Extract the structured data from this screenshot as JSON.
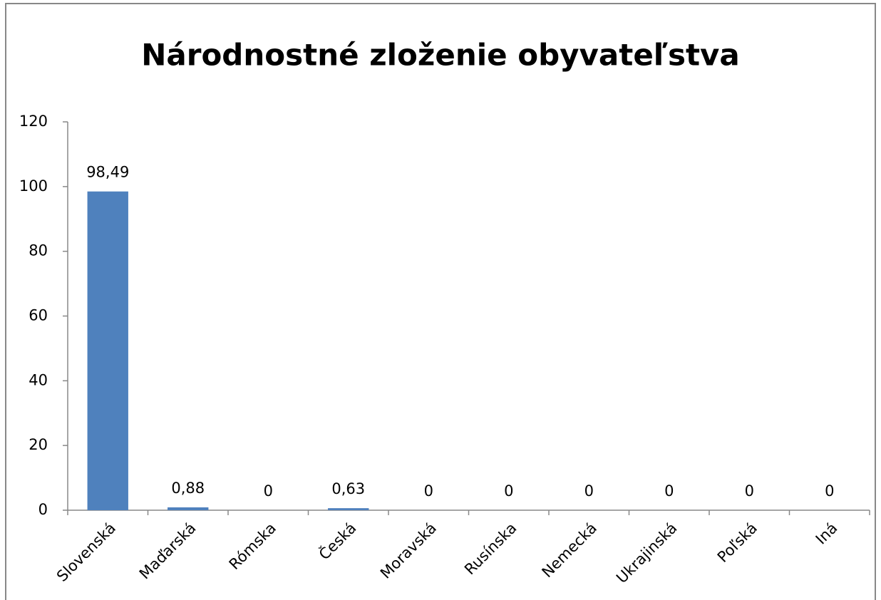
{
  "chart_data": {
    "type": "bar",
    "title": "Národnostné zloženie obyvateľstva",
    "categories": [
      "Slovenská",
      "Maďarská",
      "Rómska",
      "Česká",
      "Moravská",
      "Rusínska",
      "Nemecká",
      "Ukrajinská",
      "Poľská",
      "Iná"
    ],
    "values": [
      98.49,
      0.88,
      0,
      0.63,
      0,
      0,
      0,
      0,
      0,
      0
    ],
    "value_labels": [
      "98,49",
      "0,88",
      "0",
      "0,63",
      "0",
      "0",
      "0",
      "0",
      "0",
      "0"
    ],
    "color": "#4f81bd",
    "ylim": [
      0,
      120
    ],
    "yticks": [
      0,
      20,
      40,
      60,
      80,
      100,
      120
    ],
    "grid": false
  }
}
